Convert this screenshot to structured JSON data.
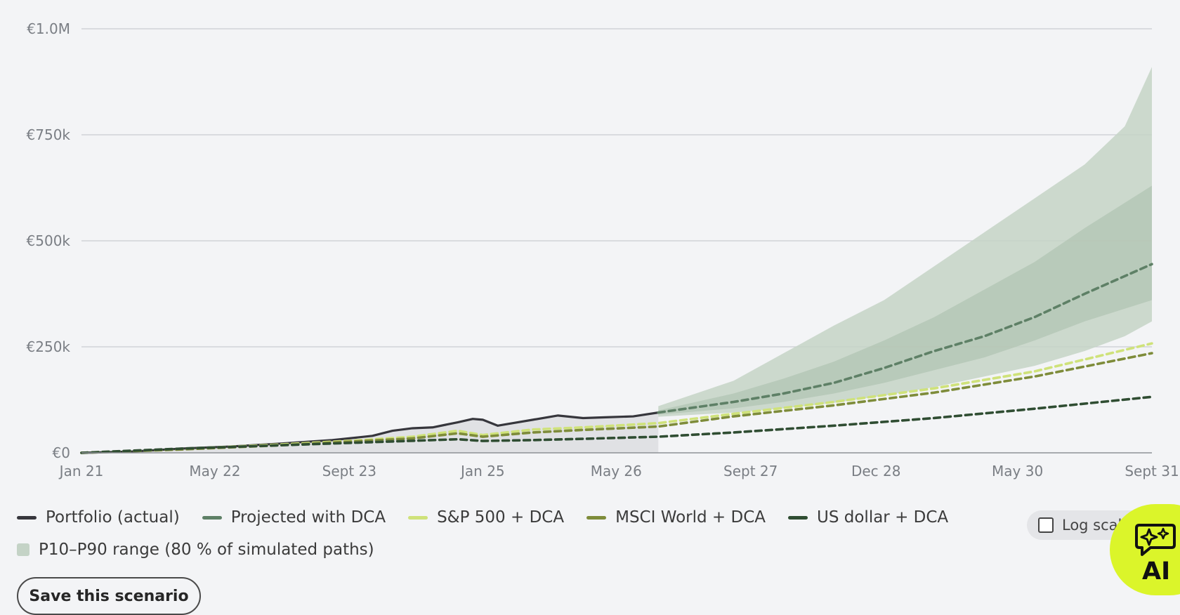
{
  "chart_data": {
    "type": "line",
    "title": "",
    "xlabel": "",
    "ylabel": "",
    "ylim": [
      0,
      1000000
    ],
    "y_ticks": [
      {
        "value": 0,
        "label": "€0"
      },
      {
        "value": 250000,
        "label": "€250k"
      },
      {
        "value": 500000,
        "label": "€500k"
      },
      {
        "value": 750000,
        "label": "€750k"
      },
      {
        "value": 1000000,
        "label": "€1.0M"
      }
    ],
    "x_ticks": [
      {
        "t": 2021.0,
        "label": "Jan 21"
      },
      {
        "t": 2022.33,
        "label": "May 22"
      },
      {
        "t": 2023.67,
        "label": "Sept 23"
      },
      {
        "t": 2025.0,
        "label": "Jan 25"
      },
      {
        "t": 2026.33,
        "label": "May 26"
      },
      {
        "t": 2027.67,
        "label": "Sept 27"
      },
      {
        "t": 2028.92,
        "label": "Dec 28"
      },
      {
        "t": 2030.33,
        "label": "May 30"
      },
      {
        "t": 2031.67,
        "label": "Sept 31"
      }
    ],
    "xlim": [
      2021.0,
      2031.67
    ],
    "grid": true,
    "log_scale": false,
    "split_t": 2026.75,
    "series": [
      {
        "name": "Portfolio (actual)",
        "color": "#36363c",
        "style": "solid",
        "x": [
          2021.0,
          2021.5,
          2022.0,
          2022.5,
          2023.0,
          2023.5,
          2023.9,
          2024.1,
          2024.3,
          2024.5,
          2024.75,
          2024.9,
          2025.0,
          2025.15,
          2025.3,
          2025.5,
          2025.75,
          2026.0,
          2026.25,
          2026.5,
          2026.75
        ],
        "values": [
          0,
          3000,
          10000,
          15000,
          22000,
          30000,
          40000,
          52000,
          58000,
          60000,
          72000,
          80000,
          78000,
          64000,
          70000,
          78000,
          88000,
          82000,
          84000,
          86000,
          95000
        ]
      },
      {
        "name": "Projected with DCA",
        "color": "#5e8066",
        "style": "dashed",
        "x": [
          2026.75,
          2027.5,
          2028.0,
          2028.5,
          2029.0,
          2029.5,
          2030.0,
          2030.5,
          2031.0,
          2031.67
        ],
        "values": [
          95000,
          120000,
          140000,
          165000,
          200000,
          240000,
          275000,
          320000,
          375000,
          445000
        ]
      },
      {
        "name": "S&P 500 + DCA",
        "color": "#cfe27a",
        "style": "dashed",
        "x": [
          2021.0,
          2022.0,
          2023.0,
          2023.8,
          2024.3,
          2024.75,
          2025.0,
          2025.5,
          2026.0,
          2026.75,
          2027.5,
          2028.5,
          2029.5,
          2030.5,
          2031.67
        ],
        "values": [
          0,
          9000,
          20000,
          30000,
          38000,
          52000,
          42000,
          55000,
          60000,
          70000,
          92000,
          120000,
          152000,
          192000,
          258000
        ]
      },
      {
        "name": "MSCI World + DCA",
        "color": "#7e8c3a",
        "style": "dashed",
        "x": [
          2021.0,
          2022.0,
          2023.0,
          2023.8,
          2024.3,
          2024.75,
          2025.0,
          2025.5,
          2026.0,
          2026.75,
          2027.5,
          2028.5,
          2029.5,
          2030.5,
          2031.67
        ],
        "values": [
          0,
          8000,
          18000,
          28000,
          34000,
          46000,
          38000,
          48000,
          54000,
          62000,
          86000,
          112000,
          142000,
          180000,
          235000
        ]
      },
      {
        "name": "US dollar + DCA",
        "color": "#2f4d32",
        "style": "dashed",
        "x": [
          2021.0,
          2022.0,
          2023.0,
          2024.0,
          2024.75,
          2025.0,
          2025.5,
          2026.0,
          2026.75,
          2027.5,
          2028.5,
          2029.5,
          2030.5,
          2031.67
        ],
        "values": [
          0,
          10000,
          18000,
          26000,
          32000,
          28000,
          30000,
          33000,
          38000,
          48000,
          64000,
          82000,
          104000,
          132000
        ]
      }
    ],
    "bands": [
      {
        "name": "P10–P90 range (80 % of simulated paths)",
        "color": "#c4d3c6",
        "x": [
          2026.75,
          2027.5,
          2028.0,
          2028.5,
          2029.0,
          2029.5,
          2030.0,
          2030.5,
          2031.0,
          2031.4,
          2031.67
        ],
        "lower": [
          85000,
          95000,
          105000,
          118000,
          135000,
          155000,
          180000,
          205000,
          240000,
          275000,
          310000
        ],
        "upper": [
          110000,
          170000,
          235000,
          300000,
          360000,
          440000,
          520000,
          600000,
          680000,
          770000,
          910000
        ]
      },
      {
        "name": "",
        "color": "#b1c4b3",
        "x": [
          2026.75,
          2027.5,
          2028.0,
          2028.5,
          2029.0,
          2029.5,
          2030.0,
          2030.5,
          2031.0,
          2031.67
        ],
        "lower": [
          90000,
          105000,
          120000,
          140000,
          165000,
          195000,
          225000,
          265000,
          310000,
          360000
        ],
        "upper": [
          100000,
          140000,
          175000,
          215000,
          265000,
          320000,
          385000,
          450000,
          530000,
          630000
        ]
      }
    ]
  },
  "legend": {
    "row1": [
      {
        "label": "Portfolio (actual)",
        "color": "#36363c"
      },
      {
        "label": "Projected with DCA",
        "color": "#5e8066"
      },
      {
        "label": "S&P 500 + DCA",
        "color": "#cfe27a"
      },
      {
        "label": "MSCI World + DCA",
        "color": "#7e8c3a"
      },
      {
        "label": "US dollar + DCA",
        "color": "#2f4d32"
      }
    ],
    "band": {
      "label": "P10–P90 range (80 % of simulated paths)",
      "color": "#c4d3c6"
    }
  },
  "controls": {
    "save_label": "Save this scenario",
    "log_scale_label": "Log scale",
    "log_scale_checked": false,
    "ai_label": "AI Chat",
    "ai_icon": "sparkle-chat-icon"
  }
}
